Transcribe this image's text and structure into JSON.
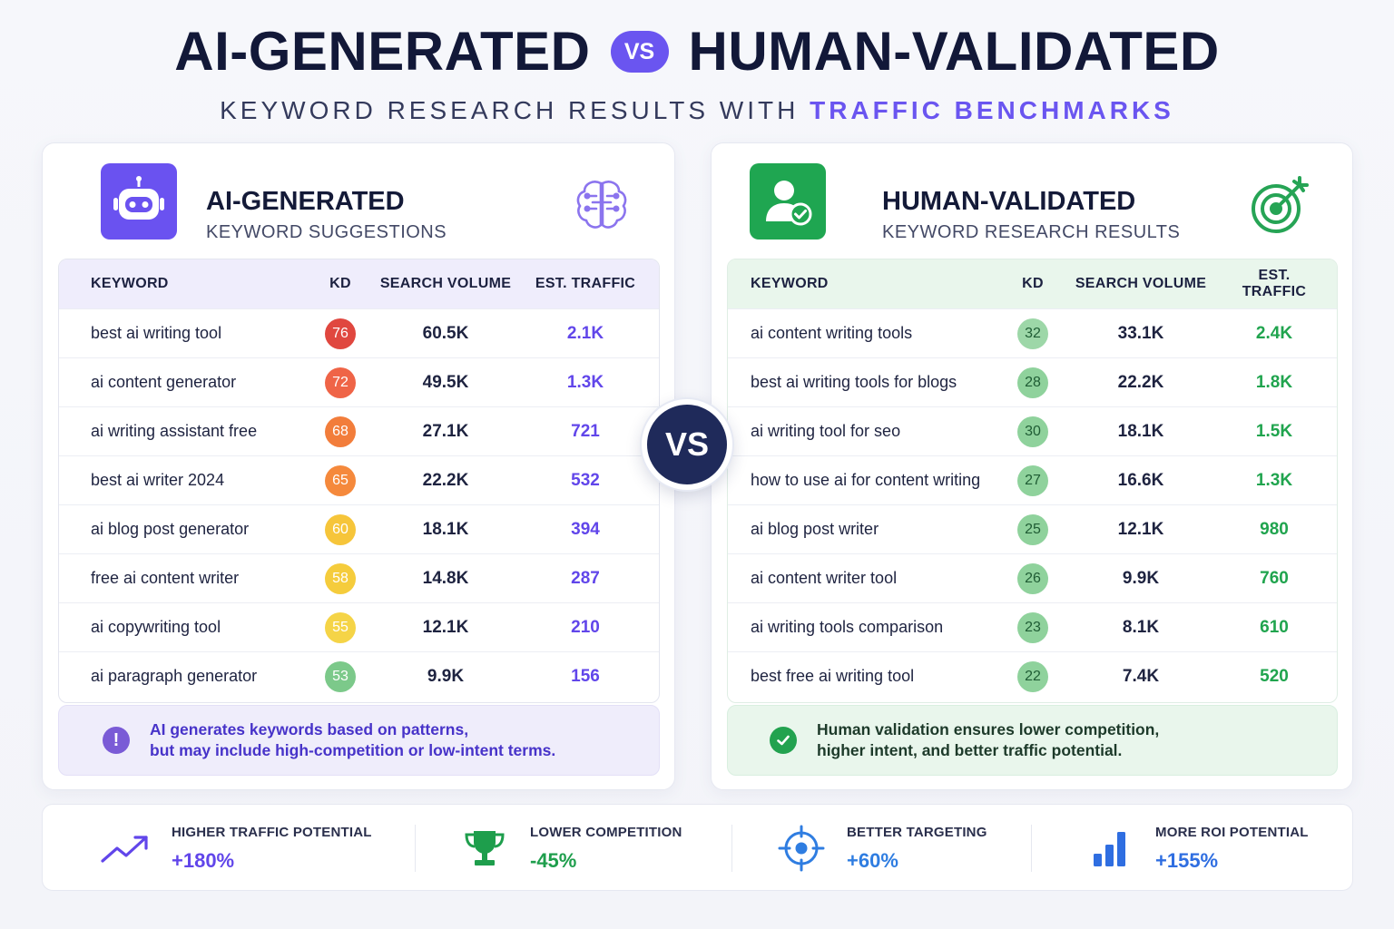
{
  "header": {
    "title_left": "AI-GENERATED",
    "vs_label": "VS",
    "title_right": "HUMAN-VALIDATED",
    "subtitle_plain": "KEYWORD RESEARCH RESULTS WITH",
    "subtitle_accent": "TRAFFIC BENCHMARKS"
  },
  "center_vs": "VS",
  "ai_panel": {
    "title": "AI-GENERATED",
    "subtitle": "KEYWORD SUGGESTIONS",
    "logo_icon": "robot-icon",
    "header_icon": "brain-circuit-icon",
    "columns": {
      "keyword": "KEYWORD",
      "kd": "KD",
      "volume": "SEARCH VOLUME",
      "traffic": "EST. TRAFFIC"
    },
    "rows": [
      {
        "keyword": "best ai writing tool",
        "kd": "76",
        "volume": "60.5K",
        "traffic": "2.1K",
        "kd_color": "#e0473f"
      },
      {
        "keyword": "ai content generator",
        "kd": "72",
        "volume": "49.5K",
        "traffic": "1.3K",
        "kd_color": "#ef6447"
      },
      {
        "keyword": "ai writing assistant free",
        "kd": "68",
        "volume": "27.1K",
        "traffic": "721",
        "kd_color": "#f27d3b"
      },
      {
        "keyword": "best ai writer 2024",
        "kd": "65",
        "volume": "22.2K",
        "traffic": "532",
        "kd_color": "#f5893c"
      },
      {
        "keyword": "ai blog post generator",
        "kd": "60",
        "volume": "18.1K",
        "traffic": "394",
        "kd_color": "#f6c53a"
      },
      {
        "keyword": "free ai content writer",
        "kd": "58",
        "volume": "14.8K",
        "traffic": "287",
        "kd_color": "#f5cc3c"
      },
      {
        "keyword": "ai copywriting tool",
        "kd": "55",
        "volume": "12.1K",
        "traffic": "210",
        "kd_color": "#f5d447"
      },
      {
        "keyword": "ai paragraph generator",
        "kd": "53",
        "volume": "9.9K",
        "traffic": "156",
        "kd_color": "#7cc98a"
      }
    ],
    "note_icon": "exclamation-icon",
    "note_line1": "AI generates keywords based on patterns,",
    "note_line2": "but may include high-competition or low-intent terms."
  },
  "human_panel": {
    "title": "HUMAN-VALIDATED",
    "subtitle": "KEYWORD RESEARCH RESULTS",
    "logo_icon": "user-check-icon",
    "header_icon": "target-arrow-icon",
    "columns": {
      "keyword": "KEYWORD",
      "kd": "KD",
      "volume": "SEARCH VOLUME",
      "traffic": "EST. TRAFFIC"
    },
    "rows": [
      {
        "keyword": "ai content writing tools",
        "kd": "32",
        "volume": "33.1K",
        "traffic": "2.4K",
        "kd_color": "#9dd7a8"
      },
      {
        "keyword": "best ai writing tools for blogs",
        "kd": "28",
        "volume": "22.2K",
        "traffic": "1.8K",
        "kd_color": "#8fd29c"
      },
      {
        "keyword": "ai writing tool for seo",
        "kd": "30",
        "volume": "18.1K",
        "traffic": "1.5K",
        "kd_color": "#8fd29c"
      },
      {
        "keyword": "how to use ai for content writing",
        "kd": "27",
        "volume": "16.6K",
        "traffic": "1.3K",
        "kd_color": "#8fd29c"
      },
      {
        "keyword": "ai blog post writer",
        "kd": "25",
        "volume": "12.1K",
        "traffic": "980",
        "kd_color": "#8fd29c"
      },
      {
        "keyword": "ai content writer tool",
        "kd": "26",
        "volume": "9.9K",
        "traffic": "760",
        "kd_color": "#8fd29c"
      },
      {
        "keyword": "ai writing tools comparison",
        "kd": "23",
        "volume": "8.1K",
        "traffic": "610",
        "kd_color": "#8fd29c"
      },
      {
        "keyword": "best free ai writing tool",
        "kd": "22",
        "volume": "7.4K",
        "traffic": "520",
        "kd_color": "#8fd29c"
      }
    ],
    "note_icon": "check-circle-icon",
    "note_line1": "Human validation ensures lower competition,",
    "note_line2": "higher intent, and better traffic potential."
  },
  "stats": [
    {
      "label": "HIGHER TRAFFIC POTENTIAL",
      "value": "+180%",
      "icon": "trend-up-icon",
      "color": "#6146ea"
    },
    {
      "label": "LOWER COMPETITION",
      "value": "-45%",
      "icon": "trophy-icon",
      "color": "#1e9e4c"
    },
    {
      "label": "BETTER TARGETING",
      "value": "+60%",
      "icon": "crosshair-icon",
      "color": "#2f7de1"
    },
    {
      "label": "MORE ROI POTENTIAL",
      "value": "+155%",
      "icon": "bar-chart-icon",
      "color": "#2f6ee1"
    }
  ]
}
